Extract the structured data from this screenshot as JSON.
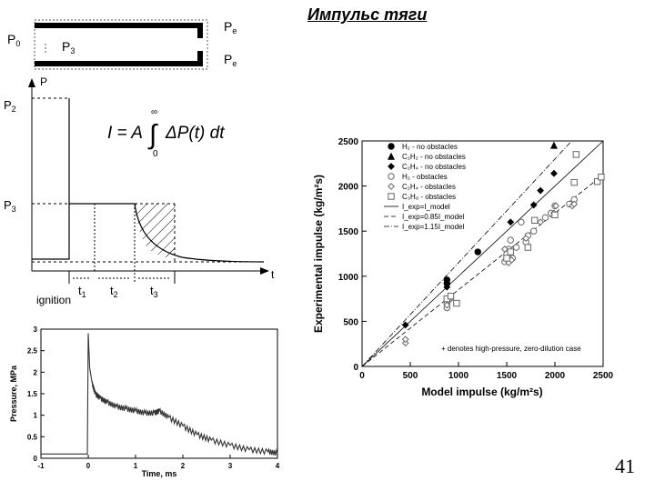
{
  "slide": {
    "title": "Импульс тяги",
    "page_number": "41"
  },
  "tube": {
    "label_p0": "P",
    "label_p0_sub": "0",
    "label_p3": "P",
    "label_p3_sub": "3",
    "label_pe_top": "P",
    "label_pe_top_sub": "e",
    "label_pe_bottom": "P",
    "label_pe_bottom_sub": "e"
  },
  "schematic": {
    "y_axis_label": "P",
    "x_axis_label": "t",
    "p2_label": "P",
    "p2_sub": "2",
    "p3_label": "P",
    "p3_sub": "3",
    "ignition_label": "ignition",
    "t1_label": "t",
    "t1_sub": "1",
    "t2_label": "t",
    "t2_sub": "2",
    "t3_label": "t",
    "t3_sub": "3",
    "formula": {
      "lhs": "I = A",
      "upper_limit": "∞",
      "lower_limit": "0",
      "integrand": "ΔP(t) dt"
    }
  },
  "chart_data": [
    {
      "type": "line",
      "xlabel": "Time, ms",
      "ylabel": "Pressure, MPa",
      "xlim": [
        -1,
        4
      ],
      "ylim": [
        0,
        3
      ],
      "x_ticks": [
        "-1",
        "0",
        "1",
        "2",
        "3",
        "4"
      ],
      "y_ticks": [
        "0",
        "0.5",
        "1",
        "1.5",
        "2",
        "2.5",
        "3"
      ],
      "series": [
        {
          "x": [
            -1,
            -0.5,
            -0.02,
            0,
            0.03,
            0.08,
            0.15,
            0.25,
            0.4,
            0.6,
            0.8,
            1.0,
            1.2,
            1.4,
            1.5,
            1.7,
            2.0,
            2.3,
            2.6,
            3.0,
            3.4,
            3.8,
            4.0
          ],
          "y": [
            0.1,
            0.1,
            0.1,
            2.9,
            2.1,
            1.75,
            1.5,
            1.4,
            1.3,
            1.2,
            1.15,
            1.1,
            1.05,
            1.05,
            1.1,
            0.95,
            0.75,
            0.55,
            0.42,
            0.3,
            0.2,
            0.15,
            0.12
          ]
        }
      ]
    },
    {
      "type": "scatter",
      "xlabel": "Model impulse (kg/m²s)",
      "ylabel": "Experimental impulse (kg/m²s)",
      "xlim": [
        0,
        2500
      ],
      "ylim": [
        0,
        2500
      ],
      "x_ticks": [
        "0",
        "500",
        "1000",
        "1500",
        "2000",
        "2500"
      ],
      "y_ticks": [
        "0",
        "500",
        "1000",
        "1500",
        "2000",
        "2500"
      ],
      "legend_position": "top-left",
      "annotation": "+ denotes high-pressure, zero-dilution case",
      "series": [
        {
          "name": "H₂ - no obstacles",
          "marker": "circle-filled",
          "points": [
            [
              880,
              920
            ],
            [
              880,
              960
            ],
            [
              1200,
              1270
            ]
          ]
        },
        {
          "name": "C₂H₂ - no obstacles",
          "marker": "triangle-filled",
          "points": [
            [
              1990,
              2450
            ]
          ]
        },
        {
          "name": "C₂H₄ - no obstacles",
          "marker": "diamond-filled",
          "points": [
            [
              450,
              460
            ],
            [
              880,
              880
            ],
            [
              1540,
              1600
            ],
            [
              1780,
              1790
            ],
            [
              1850,
              1950
            ],
            [
              1990,
              2140
            ]
          ]
        },
        {
          "name": "H₂ - obstacles",
          "marker": "circle-open",
          "points": [
            [
              880,
              700
            ],
            [
              880,
              650
            ],
            [
              920,
              760
            ],
            [
              1480,
              1160
            ],
            [
              1500,
              1250
            ],
            [
              1520,
              1300
            ],
            [
              1540,
              1400
            ],
            [
              1560,
              1200
            ],
            [
              1600,
              1320
            ],
            [
              1650,
              1600
            ],
            [
              1700,
              1380
            ],
            [
              1720,
              1450
            ],
            [
              1780,
              1500
            ],
            [
              1900,
              1650
            ],
            [
              1960,
              1700
            ],
            [
              2000,
              1780
            ],
            [
              2150,
              1800
            ],
            [
              2200,
              1850
            ]
          ]
        },
        {
          "name": "C₂H₄ - obstacles",
          "marker": "diamond-open",
          "points": [
            [
              450,
              260
            ],
            [
              450,
              300
            ],
            [
              880,
              680
            ],
            [
              900,
              730
            ],
            [
              1480,
              1300
            ],
            [
              1520,
              1150
            ],
            [
              1550,
              1180
            ],
            [
              1700,
              1420
            ],
            [
              1850,
              1600
            ],
            [
              1990,
              1700
            ],
            [
              2010,
              1780
            ],
            [
              2180,
              1780
            ],
            [
              2200,
              1800
            ]
          ]
        },
        {
          "name": "C₃H₈ - obstacles",
          "marker": "square-open",
          "points": [
            [
              880,
              750
            ],
            [
              920,
              780
            ],
            [
              980,
              700
            ],
            [
              1500,
              1200
            ],
            [
              1540,
              1270
            ],
            [
              1720,
              1320
            ],
            [
              1790,
              1620
            ],
            [
              2000,
              1680
            ],
            [
              2200,
              2040
            ],
            [
              2220,
              2350
            ],
            [
              2440,
              2050
            ],
            [
              2480,
              2100
            ]
          ]
        }
      ],
      "lines": [
        {
          "name": "I_exp=I_model",
          "slope": 1.0,
          "style": "solid"
        },
        {
          "name": "I_exp=0.85I_model",
          "slope": 0.85,
          "style": "dashed"
        },
        {
          "name": "I_exp=1.15I_model",
          "slope": 1.15,
          "style": "dashdot"
        }
      ]
    }
  ]
}
